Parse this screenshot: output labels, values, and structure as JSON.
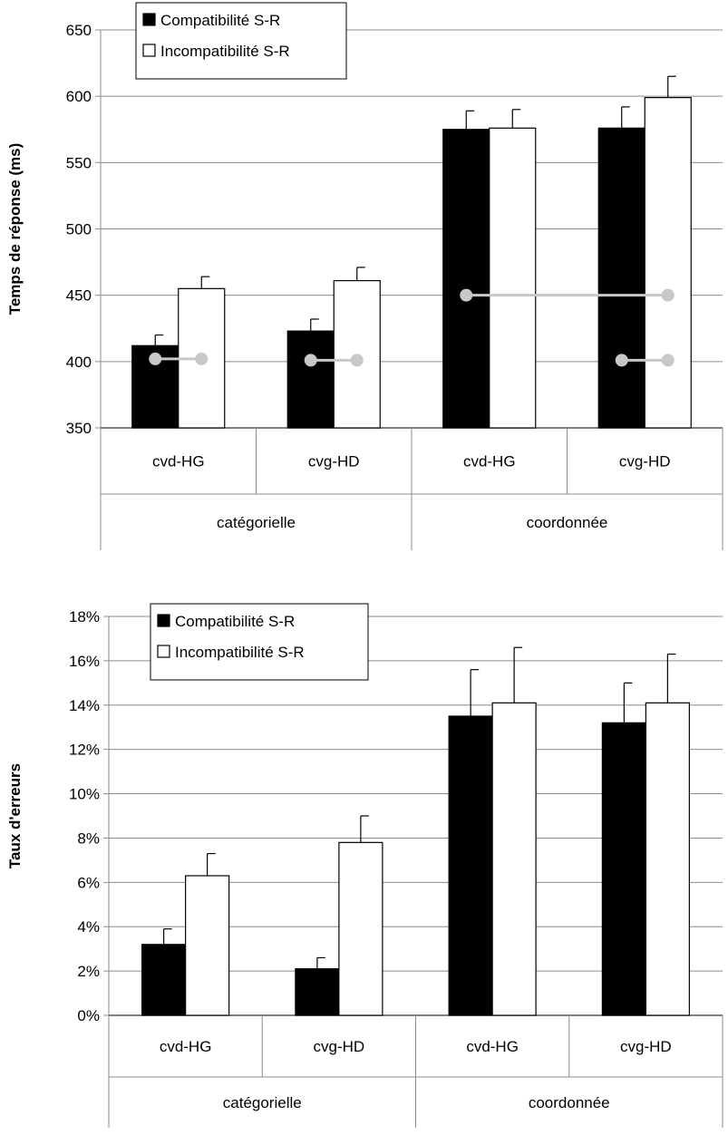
{
  "chart_data": [
    {
      "type": "bar",
      "ylabel": "Temps de réponse (ms)",
      "ylim": [
        350,
        650
      ],
      "yticks": [
        "350",
        "400",
        "450",
        "500",
        "550",
        "600",
        "650"
      ],
      "grid": true,
      "legend_position": "top-left",
      "categories": [
        "cvd-HG",
        "cvg-HD",
        "cvd-HG",
        "cvg-HD"
      ],
      "groups": [
        {
          "label": "catégorielle",
          "span": 2
        },
        {
          "label": "coordonnée",
          "span": 2
        }
      ],
      "series": [
        {
          "name": "Compatibilité S-R",
          "color": "#000000",
          "values": [
            412,
            423,
            575,
            576
          ],
          "errors": [
            8,
            9,
            14,
            16
          ]
        },
        {
          "name": "Incompatibilité S-R",
          "color": "#ffffff",
          "values": [
            455,
            461,
            576,
            599
          ],
          "errors": [
            9,
            10,
            14,
            16
          ]
        }
      ],
      "annotation_lines": [
        {
          "x_from": 0,
          "x_to": 0,
          "y": 402
        },
        {
          "x_from": 1,
          "x_to": 1,
          "y": 401
        },
        {
          "x_from": 2,
          "x_to": 3,
          "y": 450
        },
        {
          "x_from": 3,
          "x_to": 3,
          "y": 401
        }
      ],
      "annotation_color": "#c8c8c8"
    },
    {
      "type": "bar",
      "ylabel": "Taux d'erreurs",
      "ylim": [
        0,
        18
      ],
      "yticks": [
        "0%",
        "2%",
        "4%",
        "6%",
        "8%",
        "10%",
        "12%",
        "14%",
        "16%",
        "18%"
      ],
      "grid": true,
      "legend_position": "top-left",
      "categories": [
        "cvd-HG",
        "cvg-HD",
        "cvd-HG",
        "cvg-HD"
      ],
      "groups": [
        {
          "label": "catégorielle",
          "span": 2
        },
        {
          "label": "coordonnée",
          "span": 2
        }
      ],
      "series": [
        {
          "name": "Compatibilité S-R",
          "color": "#000000",
          "values": [
            3.2,
            2.1,
            13.5,
            13.2
          ],
          "errors": [
            0.7,
            0.5,
            2.1,
            1.8
          ]
        },
        {
          "name": "Incompatibilité S-R",
          "color": "#ffffff",
          "values": [
            6.3,
            7.8,
            14.1,
            14.1
          ],
          "errors": [
            1.0,
            1.2,
            2.5,
            2.2
          ]
        }
      ]
    }
  ]
}
